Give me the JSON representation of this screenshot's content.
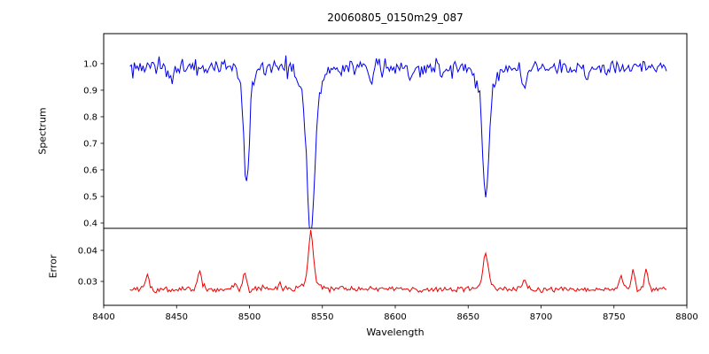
{
  "chart_data": {
    "type": "line",
    "title": "20060805_0150m29_087",
    "xlabel": "Wavelength",
    "xlim": [
      8400,
      8800
    ],
    "x_tick_values": [
      8400,
      8450,
      8500,
      8550,
      8600,
      8650,
      8700,
      8750,
      8800
    ],
    "x_tick_labels": [
      "8400",
      "8450",
      "8500",
      "8550",
      "8600",
      "8650",
      "8700",
      "8750",
      "8800"
    ],
    "x_data_range": [
      8418,
      8786
    ],
    "grid": false,
    "legend": "none",
    "panels": [
      {
        "name": "spectrum",
        "ylabel": "Spectrum",
        "ylim": [
          0.38,
          1.113
        ],
        "y_tick_values": [
          0.4,
          0.5,
          0.6,
          0.7,
          0.8,
          0.9,
          1.0
        ],
        "y_tick_labels": [
          "0.4",
          "0.5",
          "0.6",
          "0.7",
          "0.8",
          "0.9",
          "1.0"
        ],
        "series": {
          "name": "spectrum-flux",
          "color": "#0000ee",
          "continuum": 0.985,
          "noise_sigma": 0.016,
          "absorption_lines": [
            {
              "center": 8498.0,
              "depth": 0.365,
              "sigma": 1.8
            },
            {
              "center": 8498.0,
              "depth": 0.07,
              "sigma": 4.0
            },
            {
              "center": 8542.1,
              "depth": 0.5,
              "sigma": 2.4
            },
            {
              "center": 8542.1,
              "depth": 0.13,
              "sigma": 6.0
            },
            {
              "center": 8662.1,
              "depth": 0.4,
              "sigma": 2.0
            },
            {
              "center": 8662.1,
              "depth": 0.1,
              "sigma": 5.0
            },
            {
              "center": 8447.0,
              "depth": 0.05,
              "sigma": 1.2
            },
            {
              "center": 8584.0,
              "depth": 0.045,
              "sigma": 1.2
            },
            {
              "center": 8610.0,
              "depth": 0.04,
              "sigma": 1.2
            },
            {
              "center": 8688.6,
              "depth": 0.09,
              "sigma": 1.4
            },
            {
              "center": 8731.0,
              "depth": 0.045,
              "sigma": 1.2
            }
          ]
        }
      },
      {
        "name": "error",
        "ylabel": "Error",
        "ylim": [
          0.0223,
          0.0471
        ],
        "y_tick_values": [
          0.03,
          0.04
        ],
        "y_tick_labels": [
          "0.03",
          "0.04"
        ],
        "series": {
          "name": "error-values",
          "color": "#ee0000",
          "baseline": 0.0275,
          "noise_sigma": 0.00045,
          "peaks": [
            {
              "center": 8430.0,
              "height": 0.0045,
              "sigma": 1.2
            },
            {
              "center": 8466.0,
              "height": 0.006,
              "sigma": 1.3
            },
            {
              "center": 8490.0,
              "height": 0.002,
              "sigma": 1.0
            },
            {
              "center": 8496.5,
              "height": 0.005,
              "sigma": 1.2
            },
            {
              "center": 8521.0,
              "height": 0.0018,
              "sigma": 1.0
            },
            {
              "center": 8542.1,
              "height": 0.0155,
              "sigma": 1.6
            },
            {
              "center": 8542.1,
              "height": 0.003,
              "sigma": 4.5
            },
            {
              "center": 8662.1,
              "height": 0.0095,
              "sigma": 1.6
            },
            {
              "center": 8662.1,
              "height": 0.002,
              "sigma": 4.0
            },
            {
              "center": 8688.6,
              "height": 0.0028,
              "sigma": 1.2
            },
            {
              "center": 8755.0,
              "height": 0.0045,
              "sigma": 1.2
            },
            {
              "center": 8763.0,
              "height": 0.006,
              "sigma": 1.2
            },
            {
              "center": 8772.0,
              "height": 0.006,
              "sigma": 1.3
            }
          ]
        }
      }
    ]
  }
}
